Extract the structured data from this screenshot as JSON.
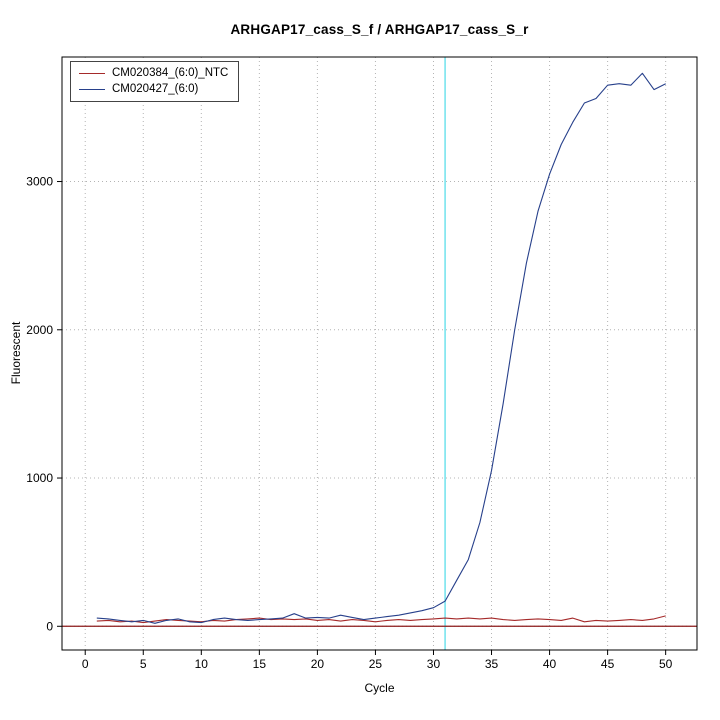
{
  "title": "ARHGAP17_cass_S_f / ARHGAP17_cass_S_r",
  "chart_data": {
    "type": "line",
    "title": "ARHGAP17_cass_S_f / ARHGAP17_cass_S_r",
    "xlabel": "Cycle",
    "ylabel": "Fluorescent",
    "xlim": [
      -2,
      52.7
    ],
    "ylim": [
      -160,
      3840
    ],
    "xticks": [
      0,
      5,
      10,
      15,
      20,
      25,
      30,
      35,
      40,
      45,
      50
    ],
    "yticks": [
      0,
      1000,
      2000,
      3000
    ],
    "grid": true,
    "legend_position": "top-left",
    "threshold_line": {
      "x": 31,
      "color": "#7ae4ee"
    },
    "zero_line": {
      "y": 0,
      "color": "#8b1a1a"
    },
    "colors": {
      "grid": "#b4b4b4",
      "box": "#000000",
      "background": "#ffffff"
    },
    "series": [
      {
        "name": "CM020384_(6:0)_NTC",
        "color": "#a52a2a",
        "x": [
          1,
          2,
          3,
          4,
          5,
          6,
          7,
          8,
          9,
          10,
          11,
          12,
          13,
          14,
          15,
          16,
          17,
          18,
          19,
          20,
          21,
          22,
          23,
          24,
          25,
          26,
          27,
          28,
          29,
          30,
          31,
          32,
          33,
          34,
          35,
          36,
          37,
          38,
          39,
          40,
          41,
          42,
          43,
          44,
          45,
          46,
          47,
          48,
          49,
          50
        ],
        "y": [
          35,
          40,
          30,
          35,
          25,
          35,
          45,
          40,
          35,
          30,
          40,
          35,
          45,
          50,
          55,
          45,
          50,
          45,
          50,
          40,
          45,
          35,
          45,
          40,
          30,
          40,
          45,
          40,
          45,
          50,
          55,
          50,
          55,
          50,
          55,
          45,
          40,
          45,
          50,
          45,
          40,
          55,
          30,
          40,
          35,
          40,
          45,
          40,
          50,
          70
        ]
      },
      {
        "name": "CM020427_(6:0)",
        "color": "#27408b",
        "x": [
          1,
          2,
          3,
          4,
          5,
          6,
          7,
          8,
          9,
          10,
          11,
          12,
          13,
          14,
          15,
          16,
          17,
          18,
          19,
          20,
          21,
          22,
          23,
          24,
          25,
          26,
          27,
          28,
          29,
          30,
          31,
          32,
          33,
          34,
          35,
          36,
          37,
          38,
          39,
          40,
          41,
          42,
          43,
          44,
          45,
          46,
          47,
          48,
          49,
          50
        ],
        "y": [
          55,
          50,
          40,
          30,
          40,
          20,
          40,
          50,
          30,
          25,
          45,
          55,
          45,
          40,
          45,
          50,
          55,
          85,
          55,
          60,
          55,
          75,
          60,
          45,
          55,
          65,
          75,
          90,
          105,
          125,
          170,
          310,
          450,
          700,
          1050,
          1500,
          2000,
          2450,
          2800,
          3050,
          3250,
          3400,
          3530,
          3560,
          3650,
          3660,
          3650,
          3730,
          3620,
          3660
        ]
      }
    ]
  }
}
